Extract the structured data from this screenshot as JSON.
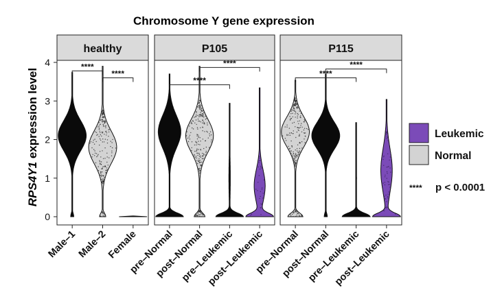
{
  "chart_data": {
    "type": "violin",
    "title": "Chromosome Y gene expression",
    "ylabel_gene": "RPS4Y1",
    "ylabel_rest": " expression level",
    "ylim": [
      0,
      4
    ],
    "yticks": [
      0,
      1,
      2,
      3,
      4
    ],
    "grid": false,
    "legend": {
      "placement": "right",
      "entries": [
        {
          "label": "Leukemic",
          "color": "#7B4BB8"
        },
        {
          "label": "Normal",
          "color": "#D3D3D3"
        }
      ],
      "significance_symbol": "****",
      "significance_text": "p < 0.0001"
    },
    "colors": {
      "black": "#0a0a0a",
      "normal": "#D3D3D3",
      "leukemic": "#7B4BB8",
      "strip": "#DADADA"
    },
    "panels": [
      {
        "name": "healthy",
        "groups": [
          {
            "label": "Male–1",
            "fill": "black",
            "zero_fraction": 0.1,
            "upper_mode": 2.1,
            "upper_spread": 0.55,
            "max": 3.75
          },
          {
            "label": "Male–2",
            "fill": "normal_dots",
            "zero_fraction": 0.18,
            "upper_mode": 1.8,
            "upper_spread": 0.6,
            "max": 3.9
          },
          {
            "label": "Female",
            "fill": "black",
            "zero_fraction": 1.0,
            "upper_mode": null,
            "upper_spread": null,
            "max": 0.02
          }
        ],
        "comparisons": [
          {
            "from": 0,
            "to": 1,
            "y": 3.78,
            "label": "****"
          },
          {
            "from": 1,
            "to": 2,
            "y": 3.6,
            "label": "****"
          }
        ]
      },
      {
        "name": "P105",
        "groups": [
          {
            "label": "pre–Normal",
            "fill": "black",
            "zero_fraction": 0.55,
            "upper_mode": 2.2,
            "upper_spread": 0.6,
            "max": 3.7
          },
          {
            "label": "post–Normal",
            "fill": "normal_dots",
            "zero_fraction": 0.28,
            "upper_mode": 2.1,
            "upper_spread": 0.6,
            "max": 3.9
          },
          {
            "label": "pre–Leukemic",
            "fill": "black",
            "zero_fraction": 0.95,
            "upper_mode": 1.0,
            "upper_spread": 0.8,
            "max": 2.95
          },
          {
            "label": "post–Leukemic",
            "fill": "leukemic",
            "zero_fraction": 0.7,
            "upper_mode": 0.8,
            "upper_spread": 0.6,
            "max": 3.35
          }
        ],
        "comparisons": [
          {
            "from": 0,
            "to": 2,
            "y": 3.42,
            "label": "****"
          },
          {
            "from": 1,
            "to": 3,
            "y": 3.87,
            "label": "****"
          }
        ]
      },
      {
        "name": "P115",
        "groups": [
          {
            "label": "pre–Normal",
            "fill": "normal_dots",
            "zero_fraction": 0.35,
            "upper_mode": 2.2,
            "upper_spread": 0.55,
            "max": 3.55
          },
          {
            "label": "post–Normal",
            "fill": "black",
            "zero_fraction": 0.1,
            "upper_mode": 2.1,
            "upper_spread": 0.5,
            "max": 3.7
          },
          {
            "label": "pre–Leukemic",
            "fill": "black",
            "zero_fraction": 0.97,
            "upper_mode": 1.0,
            "upper_spread": 0.7,
            "max": 2.45
          },
          {
            "label": "post–Leukemic",
            "fill": "leukemic",
            "zero_fraction": 0.7,
            "upper_mode": 1.2,
            "upper_spread": 0.8,
            "max": 3.05
          }
        ],
        "comparisons": [
          {
            "from": 0,
            "to": 2,
            "y": 3.6,
            "label": "****"
          },
          {
            "from": 1,
            "to": 3,
            "y": 3.83,
            "label": "****"
          }
        ]
      }
    ]
  }
}
